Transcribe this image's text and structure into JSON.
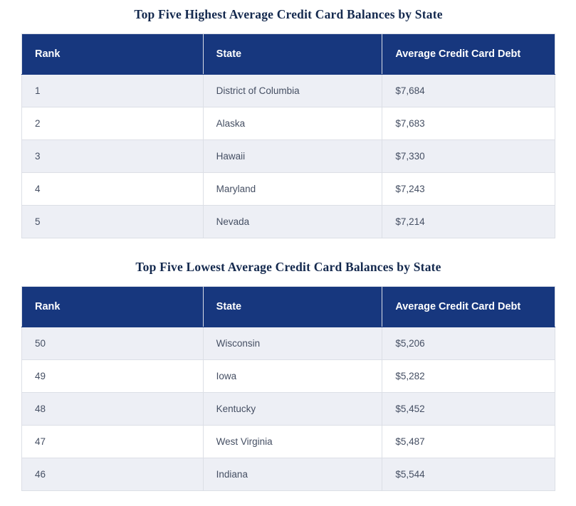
{
  "colors": {
    "header_bg": "#17377e",
    "header_text": "#ffffff",
    "title_text": "#14294e",
    "row_alt_bg": "#edeff5",
    "row_bg": "#ffffff",
    "body_text": "#454f63",
    "border": "#dcdfe6"
  },
  "tables": [
    {
      "title": "Top Five Highest Average Credit Card Balances by State",
      "columns": [
        "Rank",
        "State",
        "Average Credit Card Debt"
      ],
      "rows": [
        {
          "rank": "1",
          "state": "District of Columbia",
          "debt": "$7,684"
        },
        {
          "rank": "2",
          "state": "Alaska",
          "debt": "$7,683"
        },
        {
          "rank": "3",
          "state": "Hawaii",
          "debt": "$7,330"
        },
        {
          "rank": "4",
          "state": "Maryland",
          "debt": "$7,243"
        },
        {
          "rank": "5",
          "state": "Nevada",
          "debt": "$7,214"
        }
      ]
    },
    {
      "title": "Top Five Lowest Average Credit Card Balances by State",
      "columns": [
        "Rank",
        "State",
        "Average Credit Card Debt"
      ],
      "rows": [
        {
          "rank": "50",
          "state": "Wisconsin",
          "debt": "$5,206"
        },
        {
          "rank": "49",
          "state": "Iowa",
          "debt": "$5,282"
        },
        {
          "rank": "48",
          "state": "Kentucky",
          "debt": "$5,452"
        },
        {
          "rank": "47",
          "state": "West Virginia",
          "debt": "$5,487"
        },
        {
          "rank": "46",
          "state": "Indiana",
          "debt": "$5,544"
        }
      ]
    }
  ]
}
